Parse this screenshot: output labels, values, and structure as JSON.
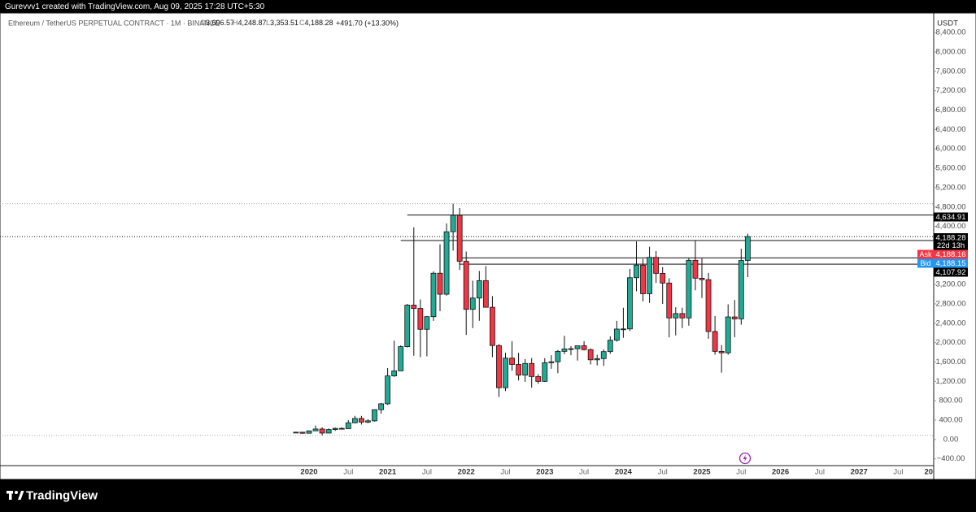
{
  "header": {
    "text": "Gurevvv1 created with TradingView.com, Aug 09, 2025 17:28 UTC+5:30"
  },
  "footer": {
    "brand": "TradingView"
  },
  "chart_data": {
    "type": "candlestick",
    "title": "Ethereum / TetherUS PERPETUAL CONTRACT · 1M · BINANCE",
    "ohlc_legend": [
      {
        "label": "O",
        "value": "3,696.57"
      },
      {
        "label": "H",
        "value": "4,248.87"
      },
      {
        "label": "L",
        "value": "3,353.51"
      },
      {
        "label": "C",
        "value": "4,188.28"
      }
    ],
    "change": "+491.70 (+13.30%)",
    "currency": "USDT",
    "x": [
      "2019-11",
      "2019-12",
      "2020-01",
      "2020-02",
      "2020-03",
      "2020-04",
      "2020-05",
      "2020-06",
      "2020-07",
      "2020-08",
      "2020-09",
      "2020-10",
      "2020-11",
      "2020-12",
      "2021-01",
      "2021-02",
      "2021-03",
      "2021-04",
      "2021-05",
      "2021-06",
      "2021-07",
      "2021-08",
      "2021-09",
      "2021-10",
      "2021-11",
      "2021-12",
      "2022-01",
      "2022-02",
      "2022-03",
      "2022-04",
      "2022-05",
      "2022-06",
      "2022-07",
      "2022-08",
      "2022-09",
      "2022-10",
      "2022-11",
      "2022-12",
      "2023-01",
      "2023-02",
      "2023-03",
      "2023-04",
      "2023-05",
      "2023-06",
      "2023-07",
      "2023-08",
      "2023-09",
      "2023-10",
      "2023-11",
      "2023-12",
      "2024-01",
      "2024-02",
      "2024-03",
      "2024-04",
      "2024-05",
      "2024-06",
      "2024-07",
      "2024-08",
      "2024-09",
      "2024-10",
      "2024-11",
      "2024-12",
      "2025-01",
      "2025-02",
      "2025-03",
      "2025-04",
      "2025-05",
      "2025-06",
      "2025-07",
      "2025-08"
    ],
    "open": [
      150,
      151,
      129,
      179,
      217,
      133,
      206,
      230,
      225,
      345,
      434,
      359,
      386,
      616,
      737,
      1313,
      1417,
      1917,
      2774,
      2706,
      2275,
      2536,
      3433,
      3000,
      4289,
      4630,
      3680,
      2688,
      2920,
      3280,
      2730,
      1940,
      1070,
      1680,
      1550,
      1330,
      1570,
      1300,
      1200,
      1585,
      1605,
      1820,
      1870,
      1875,
      1935,
      1855,
      1645,
      1670,
      1815,
      2050,
      2280,
      2283,
      3340,
      3600,
      3010,
      3760,
      3430,
      3230,
      2510,
      2600,
      2510,
      3700,
      3330,
      3300,
      2230,
      1820,
      1790,
      2530,
      2490,
      3696.57
    ],
    "high": [
      160,
      155,
      185,
      288,
      253,
      227,
      247,
      253,
      399,
      489,
      488,
      420,
      622,
      754,
      1475,
      2041,
      1943,
      2800,
      4380,
      2890,
      2550,
      3470,
      4030,
      4460,
      4868,
      4780,
      3880,
      3280,
      3480,
      3580,
      2960,
      1970,
      1790,
      2030,
      1790,
      1660,
      1680,
      1350,
      1680,
      1740,
      1850,
      2140,
      1930,
      1930,
      2030,
      1880,
      1750,
      1860,
      2130,
      2450,
      2720,
      3520,
      4090,
      3730,
      3980,
      3890,
      3560,
      3330,
      2730,
      2720,
      3740,
      4110,
      3740,
      3440,
      2550,
      1950,
      2790,
      2880,
      3940,
      4248.87
    ],
    "low": [
      130,
      117,
      126,
      178,
      86,
      130,
      178,
      214,
      221,
      335,
      308,
      334,
      370,
      535,
      714,
      1293,
      1438,
      1900,
      1730,
      1700,
      1718,
      2450,
      2650,
      2970,
      3900,
      3500,
      2160,
      2300,
      2450,
      2790,
      1700,
      880,
      1000,
      1420,
      1220,
      1190,
      1070,
      1150,
      1190,
      1460,
      1370,
      1760,
      1740,
      1630,
      1840,
      1550,
      1530,
      1520,
      1770,
      2020,
      2100,
      2240,
      3060,
      2850,
      2820,
      3230,
      2800,
      2110,
      2150,
      2300,
      2350,
      3080,
      2920,
      2080,
      1750,
      1380,
      1750,
      2110,
      2370,
      3353.51
    ],
    "close": [
      151,
      129,
      179,
      217,
      133,
      206,
      230,
      225,
      345,
      434,
      359,
      386,
      616,
      737,
      1313,
      1417,
      1917,
      2774,
      2706,
      2275,
      2536,
      3433,
      3000,
      4289,
      4630,
      3680,
      2688,
      2920,
      3280,
      2730,
      1940,
      1070,
      1680,
      1550,
      1330,
      1570,
      1300,
      1200,
      1585,
      1605,
      1820,
      1870,
      1875,
      1935,
      1855,
      1645,
      1670,
      1815,
      2050,
      2280,
      2283,
      3340,
      3600,
      3010,
      3760,
      3430,
      3230,
      2510,
      2600,
      2510,
      3700,
      3330,
      3300,
      2230,
      1820,
      1790,
      2530,
      2490,
      3696.57,
      4188.28
    ],
    "up_color": "#22ab94",
    "down_color": "#f23645",
    "ylim": [
      -539,
      8805
    ],
    "yticks": [
      {
        "value": -400,
        "label": "−400.00"
      },
      {
        "value": 0,
        "label": "0.00"
      },
      {
        "value": 400,
        "label": "400.00"
      },
      {
        "value": 800,
        "label": "800.00"
      },
      {
        "value": 1200,
        "label": "1,200.00"
      },
      {
        "value": 1600,
        "label": "1,600.00"
      },
      {
        "value": 2000,
        "label": "2,000.00"
      },
      {
        "value": 2400,
        "label": "2,400.00"
      },
      {
        "value": 2800,
        "label": "2,800.00"
      },
      {
        "value": 3200,
        "label": "3,200.00"
      },
      {
        "value": 4400,
        "label": "4,400.00"
      },
      {
        "value": 4800,
        "label": "4,800.00"
      },
      {
        "value": 5200,
        "label": "5,200.00"
      },
      {
        "value": 5600,
        "label": "5,600.00"
      },
      {
        "value": 6000,
        "label": "6,000.00"
      },
      {
        "value": 6400,
        "label": "6,400.00"
      },
      {
        "value": 6800,
        "label": "6,800.00"
      },
      {
        "value": 7200,
        "label": "7,200.00"
      },
      {
        "value": 7600,
        "label": "7,600.00"
      },
      {
        "value": 8000,
        "label": "8,000.00"
      },
      {
        "value": 8400,
        "label": "8,400.00"
      }
    ],
    "xticks": [
      {
        "value": "2020-01",
        "label": "2020"
      },
      {
        "value": "2020-07",
        "label": "Jul"
      },
      {
        "value": "2021-01",
        "label": "2021"
      },
      {
        "value": "2021-07",
        "label": "Jul"
      },
      {
        "value": "2022-01",
        "label": "2022"
      },
      {
        "value": "2022-07",
        "label": "Jul"
      },
      {
        "value": "2023-01",
        "label": "2023"
      },
      {
        "value": "2023-07",
        "label": "Jul"
      },
      {
        "value": "2024-01",
        "label": "2024"
      },
      {
        "value": "2024-07",
        "label": "Jul"
      },
      {
        "value": "2025-01",
        "label": "2025"
      },
      {
        "value": "2025-07",
        "label": "Jul"
      },
      {
        "value": "2026-01",
        "label": "2026"
      },
      {
        "value": "2026-07",
        "label": "Jul"
      },
      {
        "value": "2027-01",
        "label": "2027"
      },
      {
        "value": "2027-07",
        "label": "Jul"
      },
      {
        "value": "2027-12",
        "label": "20"
      }
    ],
    "levels": [
      {
        "value": 4634.91,
        "label": "4,634.91",
        "start": "2021-04"
      },
      {
        "value": 4107.92,
        "label": "4,107.92",
        "start": "2021-03"
      }
    ],
    "zone": {
      "start": "2021-12",
      "low": 3620,
      "high": 3750
    },
    "last_price": {
      "value": 4188.28,
      "label": "4,188.28",
      "countdown": "22d 13h"
    },
    "ask": {
      "tag": "Ask",
      "value": 4188.16,
      "label": "4,188.16",
      "color": "#f23645"
    },
    "bid": {
      "tag": "Bid",
      "value": 4188.15,
      "label": "4,188.15",
      "color": "#2196f3"
    }
  }
}
